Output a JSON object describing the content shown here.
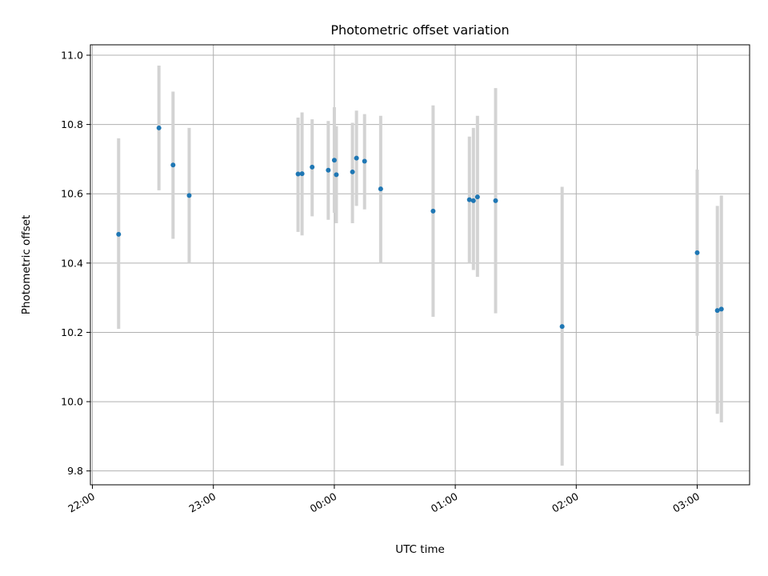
{
  "chart_data": {
    "type": "scatter",
    "title": "Photometric offset variation",
    "xlabel": "UTC time",
    "ylabel": "Photometric offset",
    "x_start_time": "21:59",
    "x_end_time": "03:26",
    "xlim": [
      "21:59",
      "03:26"
    ],
    "ylim": [
      9.76,
      11.03
    ],
    "xticks": [
      "22:00",
      "23:00",
      "00:00",
      "01:00",
      "02:00",
      "03:00"
    ],
    "yticks": [
      "9.8",
      "10.0",
      "10.2",
      "10.4",
      "10.6",
      "10.8",
      "11.0"
    ],
    "grid": true,
    "series": [
      {
        "name": "",
        "color": "#1f77b4",
        "errorbar_color": "#d3d3d3",
        "points": [
          {
            "x": "22:13",
            "y": 10.483,
            "lo": 10.21,
            "hi": 10.76
          },
          {
            "x": "22:33",
            "y": 10.79,
            "lo": 10.61,
            "hi": 10.97
          },
          {
            "x": "22:40",
            "y": 10.683,
            "lo": 10.47,
            "hi": 10.895
          },
          {
            "x": "22:48",
            "y": 10.595,
            "lo": 10.4,
            "hi": 10.79
          },
          {
            "x": "23:42",
            "y": 10.657,
            "lo": 10.49,
            "hi": 10.82
          },
          {
            "x": "23:44",
            "y": 10.658,
            "lo": 10.48,
            "hi": 10.835
          },
          {
            "x": "23:49",
            "y": 10.677,
            "lo": 10.535,
            "hi": 10.815
          },
          {
            "x": "23:57",
            "y": 10.668,
            "lo": 10.525,
            "hi": 10.81
          },
          {
            "x": "00:00",
            "y": 10.697,
            "lo": 10.545,
            "hi": 10.85
          },
          {
            "x": "00:01",
            "y": 10.655,
            "lo": 10.515,
            "hi": 10.795
          },
          {
            "x": "00:09",
            "y": 10.663,
            "lo": 10.515,
            "hi": 10.805
          },
          {
            "x": "00:11",
            "y": 10.703,
            "lo": 10.565,
            "hi": 10.84
          },
          {
            "x": "00:15",
            "y": 10.694,
            "lo": 10.555,
            "hi": 10.83
          },
          {
            "x": "00:23",
            "y": 10.614,
            "lo": 10.4,
            "hi": 10.825
          },
          {
            "x": "00:49",
            "y": 10.55,
            "lo": 10.245,
            "hi": 10.855
          },
          {
            "x": "01:07",
            "y": 10.583,
            "lo": 10.4,
            "hi": 10.765
          },
          {
            "x": "01:09",
            "y": 10.58,
            "lo": 10.38,
            "hi": 10.79
          },
          {
            "x": "01:11",
            "y": 10.591,
            "lo": 10.36,
            "hi": 10.825
          },
          {
            "x": "01:20",
            "y": 10.58,
            "lo": 10.255,
            "hi": 10.905
          },
          {
            "x": "01:53",
            "y": 10.217,
            "lo": 9.815,
            "hi": 10.62
          },
          {
            "x": "03:00",
            "y": 10.43,
            "lo": 10.19,
            "hi": 10.67
          },
          {
            "x": "03:10",
            "y": 10.263,
            "lo": 9.965,
            "hi": 10.565
          },
          {
            "x": "03:12",
            "y": 10.267,
            "lo": 9.94,
            "hi": 10.595
          }
        ]
      }
    ]
  }
}
